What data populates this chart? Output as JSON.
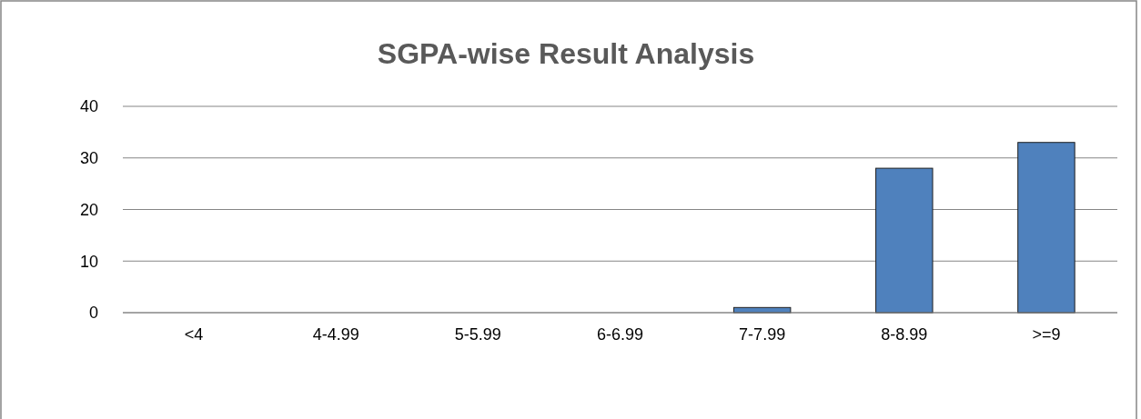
{
  "chart_data": {
    "type": "bar",
    "title": "SGPA-wise Result Analysis",
    "categories": [
      "<4",
      "4-4.99",
      "5-5.99",
      "6-6.99",
      "7-7.99",
      "8-8.99",
      ">=9"
    ],
    "values": [
      0,
      0,
      0,
      0,
      1,
      28,
      33
    ],
    "color": "#4f81bd",
    "ylim": [
      0,
      40
    ],
    "yticks": [
      0,
      10,
      20,
      30,
      40
    ],
    "grid": "y"
  }
}
